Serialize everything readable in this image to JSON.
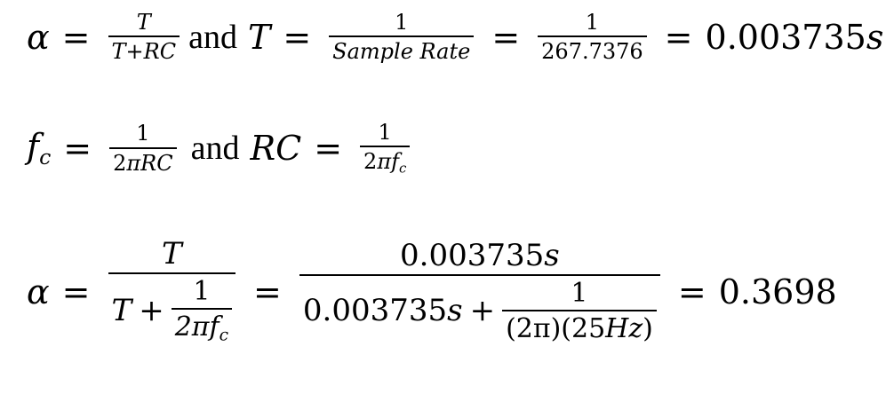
{
  "line1": {
    "alpha": "α",
    "eq": "=",
    "frac1_num": "T",
    "frac1_den": "T+RC",
    "and": "and",
    "T": "T",
    "eq2": "=",
    "frac2_num": "1",
    "frac2_den": "Sample Rate",
    "eq3": "=",
    "frac3_num": "1",
    "frac3_den": "267.7376",
    "eq4": "=",
    "result": "0.003735",
    "result_unit": "s"
  },
  "line2": {
    "f": "f",
    "f_sub": "c",
    "eq": "=",
    "frac1_num": "1",
    "frac1_den_a": "2",
    "frac1_den_b": "πRC",
    "and": "and",
    "RC": "RC",
    "eq2": "=",
    "frac2_num": "1",
    "frac2_den_a": "2",
    "frac2_den_b": "πf",
    "frac2_den_sub": "c"
  },
  "line3": {
    "alpha": "α",
    "eq": "=",
    "frac1_num": "T",
    "frac1_den_T": "T",
    "frac1_den_plus": "+",
    "inner1_num": "1",
    "inner1_den": "2πf",
    "inner1_den_sub": "c",
    "eq2": "=",
    "frac2_num": "0.003735",
    "frac2_num_unit": "s",
    "frac2_den_val": "0.003735",
    "frac2_den_unit": "s",
    "frac2_den_plus": "+",
    "inner2_num": "1",
    "inner2_den": "(2π)(25",
    "inner2_den_unit": "Hz",
    "inner2_den_close": ")",
    "eq3": "=",
    "result": "0.3698"
  }
}
